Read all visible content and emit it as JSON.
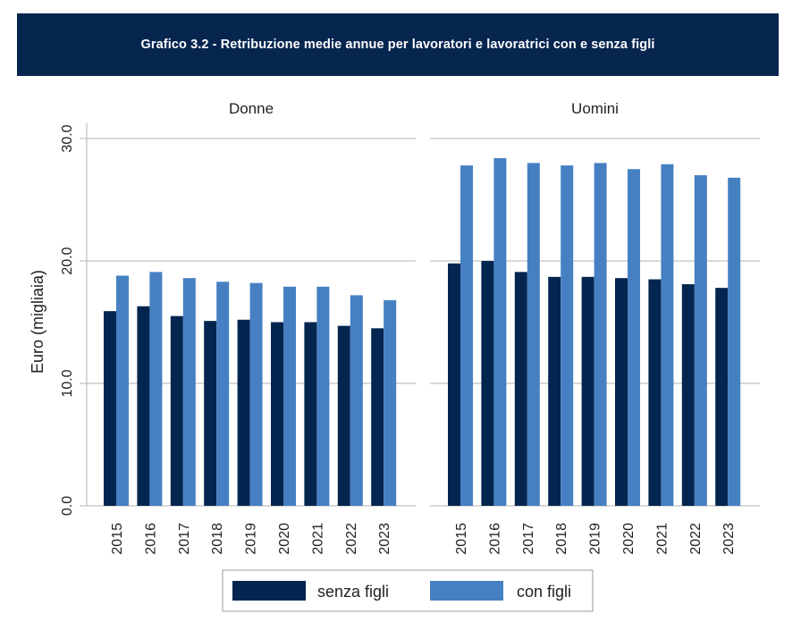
{
  "title": "Grafico 3.2 - Retribuzione medie annue per lavoratori e lavoratrici con e senza figli",
  "chart_data": {
    "type": "bar",
    "ylabel": "Euro (migliaia)",
    "ylim": [
      0,
      30
    ],
    "yticks": [
      "0.0",
      "10.0",
      "20.0",
      "30.0"
    ],
    "grid": true,
    "legend_placement": "bottom-center",
    "series_colors": {
      "senza figli": "#03254f",
      "con figli": "#4680c2"
    },
    "panels": [
      {
        "name": "Donne",
        "categories": [
          "2015",
          "2016",
          "2017",
          "2018",
          "2019",
          "2020",
          "2021",
          "2022",
          "2023"
        ],
        "series": [
          {
            "name": "senza figli",
            "values": [
              15.9,
              16.3,
              15.5,
              15.1,
              15.2,
              15.0,
              15.0,
              14.7,
              14.5
            ]
          },
          {
            "name": "con figli",
            "values": [
              18.8,
              19.1,
              18.6,
              18.3,
              18.2,
              17.9,
              17.9,
              17.2,
              16.8
            ]
          }
        ]
      },
      {
        "name": "Uomini",
        "categories": [
          "2015",
          "2016",
          "2017",
          "2018",
          "2019",
          "2020",
          "2021",
          "2022",
          "2023"
        ],
        "series": [
          {
            "name": "senza figli",
            "values": [
              19.8,
              20.0,
              19.1,
              18.7,
              18.7,
              18.6,
              18.5,
              18.1,
              17.8
            ]
          },
          {
            "name": "con figli",
            "values": [
              27.8,
              28.4,
              28.0,
              27.8,
              28.0,
              27.5,
              27.9,
              27.0,
              26.8
            ]
          }
        ]
      }
    ]
  }
}
